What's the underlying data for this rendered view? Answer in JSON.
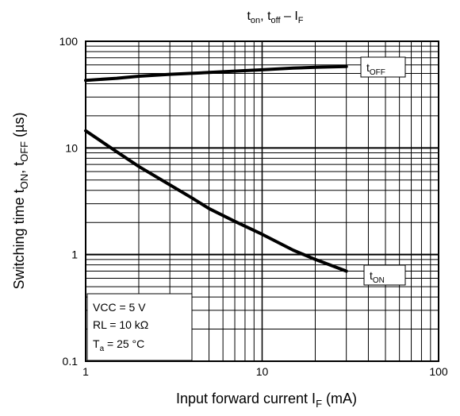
{
  "chart_data": {
    "type": "line",
    "title": "t",
    "title_sub1": "on",
    "title_mid": ", t",
    "title_sub2": "off",
    "title_end": " – I",
    "title_sub3": "F",
    "xlabel": "Input forward current  I",
    "xlabel_sub": "F",
    "xlabel_end": "  (mA)",
    "ylabel": "Switching time  t",
    "ylabel_sub1": "ON",
    "ylabel_mid": ", t",
    "ylabel_sub2": "OFF",
    "ylabel_end": " (µs)",
    "x_scale": "log",
    "y_scale": "log",
    "xlim": [
      1,
      100
    ],
    "ylim": [
      0.1,
      100
    ],
    "grid": true,
    "x_ticks": [
      1,
      10,
      100
    ],
    "x_tick_labels": [
      "1",
      "10",
      "100"
    ],
    "y_ticks": [
      0.1,
      1,
      10,
      100
    ],
    "y_tick_labels": [
      "0.1",
      "1",
      "10",
      "100"
    ],
    "series": [
      {
        "name": "t",
        "name_sub": "OFF",
        "x": [
          1,
          1.5,
          2,
          3,
          5,
          7,
          10,
          15,
          20,
          30
        ],
        "y": [
          43,
          45,
          47,
          49,
          51,
          52.5,
          54,
          56,
          57,
          58
        ]
      },
      {
        "name": "t",
        "name_sub": "ON",
        "x": [
          1,
          1.5,
          2,
          3,
          4,
          5,
          7,
          10,
          15,
          20,
          30
        ],
        "y": [
          14.5,
          9.2,
          6.7,
          4.5,
          3.4,
          2.7,
          2.05,
          1.55,
          1.1,
          0.9,
          0.7
        ]
      }
    ],
    "annotation": {
      "lines": [
        {
          "text": "VCC = 5 V"
        },
        {
          "text": "RL = 10 kΩ"
        },
        {
          "text": "T",
          "sub": "a",
          "rest": " = 25 °C"
        }
      ]
    }
  }
}
